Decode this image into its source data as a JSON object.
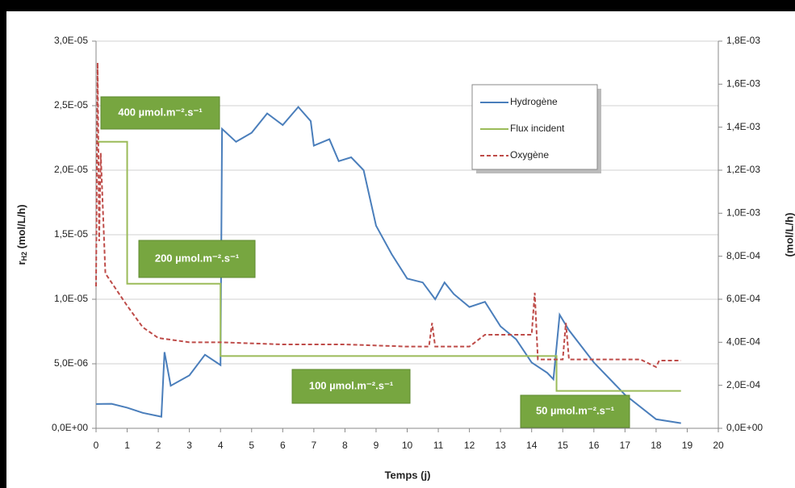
{
  "chart_data": {
    "type": "line",
    "xlabel": "Temps (j)",
    "ylabel": "r",
    "ylabel_sub": "H2",
    "ylabel_unit": " (mol/L/h)",
    "y2label": "(mol/L/h)",
    "xlim": [
      0,
      20
    ],
    "xticks": [
      0,
      1,
      2,
      3,
      4,
      5,
      6,
      7,
      8,
      9,
      10,
      11,
      12,
      13,
      14,
      15,
      16,
      17,
      18,
      19,
      20
    ],
    "ylim": [
      0,
      3e-05
    ],
    "yticks": [
      {
        "value": 0,
        "label": "0,0E+00"
      },
      {
        "value": 5e-06,
        "label": "5,0E-06"
      },
      {
        "value": 1e-05,
        "label": "1,0E-05"
      },
      {
        "value": 1.5e-05,
        "label": "1,5E-05"
      },
      {
        "value": 2e-05,
        "label": "2,0E-05"
      },
      {
        "value": 2.5e-05,
        "label": "2,5E-05"
      },
      {
        "value": 3e-05,
        "label": "3,0E-05"
      }
    ],
    "y2lim": [
      0,
      0.0018
    ],
    "y2ticks": [
      {
        "value": 0,
        "label": "0,0E+00"
      },
      {
        "value": 0.0002,
        "label": "2,0E-04"
      },
      {
        "value": 0.0004,
        "label": "4,0E-04"
      },
      {
        "value": 0.0006,
        "label": "6,0E-04"
      },
      {
        "value": 0.0008,
        "label": "8,0E-04"
      },
      {
        "value": 0.001,
        "label": "1,0E-03"
      },
      {
        "value": 0.0012,
        "label": "1,2E-03"
      },
      {
        "value": 0.0014,
        "label": "1,4E-03"
      },
      {
        "value": 0.0016,
        "label": "1,6E-03"
      },
      {
        "value": 0.0018,
        "label": "1,8E-03"
      }
    ],
    "grid": true,
    "series": [
      {
        "name": "Hydrogène",
        "color": "#4a7ebb",
        "dash": false,
        "axis": "y",
        "x": [
          0,
          0.5,
          1,
          1.5,
          2.1,
          2.2,
          2.4,
          3,
          3.5,
          4,
          4.05,
          4.5,
          5,
          5.5,
          6,
          6.5,
          6.9,
          7,
          7.5,
          7.8,
          8.2,
          8.6,
          9,
          9.5,
          10,
          10.5,
          10.9,
          11.2,
          11.5,
          12,
          12.5,
          13,
          13.5,
          14,
          14.5,
          14.7,
          14.9,
          15.2,
          16,
          17,
          18,
          18.8
        ],
        "values": [
          1.88e-06,
          1.9e-06,
          1.6e-06,
          1.2e-06,
          9e-07,
          5.9e-06,
          3.3e-06,
          4.1e-06,
          5.7e-06,
          4.9e-06,
          2.32e-05,
          2.22e-05,
          2.29e-05,
          2.44e-05,
          2.35e-05,
          2.49e-05,
          2.38e-05,
          2.19e-05,
          2.24e-05,
          2.07e-05,
          2.1e-05,
          2e-05,
          1.57e-05,
          1.35e-05,
          1.16e-05,
          1.13e-05,
          1e-05,
          1.13e-05,
          1.04e-05,
          9.4e-06,
          9.8e-06,
          7.9e-06,
          6.9e-06,
          5.1e-06,
          4.3e-06,
          3.8e-06,
          8.8e-06,
          7.6e-06,
          5.1e-06,
          2.6e-06,
          7e-07,
          4e-07
        ]
      },
      {
        "name": "Flux incident",
        "color": "#9bbb59",
        "dash": false,
        "axis": "y",
        "x": [
          0,
          1,
          1,
          4,
          4,
          14.8,
          14.8,
          18.8
        ],
        "values": [
          2.22e-05,
          2.22e-05,
          1.12e-05,
          1.12e-05,
          5.6e-06,
          5.6e-06,
          2.9e-06,
          2.9e-06
        ]
      },
      {
        "name": "Oxygène",
        "color": "#be4b48",
        "dash": true,
        "axis": "y2",
        "x": [
          0,
          0.05,
          0.1,
          0.15,
          0.3,
          1,
          1.5,
          2,
          3,
          4,
          6,
          8,
          10,
          10.7,
          10.8,
          10.9,
          12,
          12.5,
          13.5,
          14,
          14.1,
          14.2,
          15,
          15.1,
          15.2,
          16,
          17.5,
          18,
          18.1,
          18.8
        ],
        "values": [
          0.00066,
          0.0017,
          0.00087,
          0.00128,
          0.00072,
          0.00057,
          0.00047,
          0.00042,
          0.0004,
          0.0004,
          0.00039,
          0.00039,
          0.00038,
          0.00038,
          0.00049,
          0.00038,
          0.00038,
          0.000435,
          0.000435,
          0.000435,
          0.00063,
          0.00032,
          0.00032,
          0.00049,
          0.00032,
          0.00032,
          0.00032,
          0.000285,
          0.000315,
          0.000315
        ]
      }
    ],
    "annotations": [
      "400 µmol.m⁻².s⁻¹",
      "200 µmol.m⁻².s⁻¹",
      "100 µmol.m⁻².s⁻¹",
      "50 µmol.m⁻².s⁻¹"
    ]
  }
}
